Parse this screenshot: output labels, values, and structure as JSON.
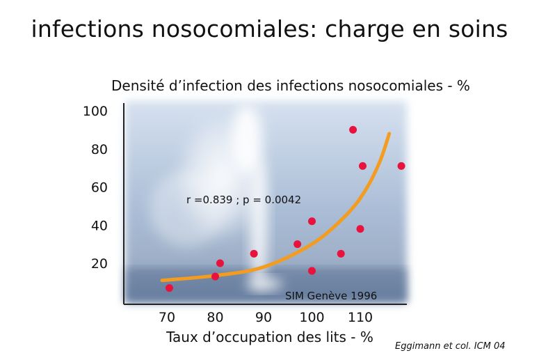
{
  "slide": {
    "title": "infections nosocomiales: charge en soins",
    "credit": "Eggimann et col. ICM 04"
  },
  "chart_data": {
    "type": "scatter",
    "ylabel": "Densité d’infection des infections nosocomiales - %",
    "xlabel": "Taux d’occupation des lits - %",
    "xlim": [
      62,
      118
    ],
    "ylim": [
      0,
      100
    ],
    "x_ticks": [
      70,
      80,
      90,
      100,
      110
    ],
    "y_ticks": [
      20,
      40,
      60,
      80,
      100
    ],
    "points": [
      {
        "x": 70.5,
        "y": 7
      },
      {
        "x": 80,
        "y": 13
      },
      {
        "x": 81,
        "y": 20
      },
      {
        "x": 88,
        "y": 25
      },
      {
        "x": 97,
        "y": 30
      },
      {
        "x": 100,
        "y": 42
      },
      {
        "x": 100,
        "y": 16
      },
      {
        "x": 106,
        "y": 25
      },
      {
        "x": 108.5,
        "y": 90
      },
      {
        "x": 110,
        "y": 38
      },
      {
        "x": 110.5,
        "y": 71
      },
      {
        "x": 118.5,
        "y": 71
      }
    ],
    "trend_curve": [
      {
        "x": 69,
        "y": 11
      },
      {
        "x": 80,
        "y": 13.5
      },
      {
        "x": 90,
        "y": 18
      },
      {
        "x": 100,
        "y": 30
      },
      {
        "x": 107,
        "y": 45
      },
      {
        "x": 111,
        "y": 58
      },
      {
        "x": 114,
        "y": 73
      },
      {
        "x": 116,
        "y": 88
      }
    ],
    "annotations": {
      "stats": "r =0.839 ; p = 0.0042",
      "source": "SIM Genève 1996"
    },
    "colors": {
      "point": "#e8123c",
      "trend": "#f39c1f",
      "axis": "#222222"
    }
  }
}
